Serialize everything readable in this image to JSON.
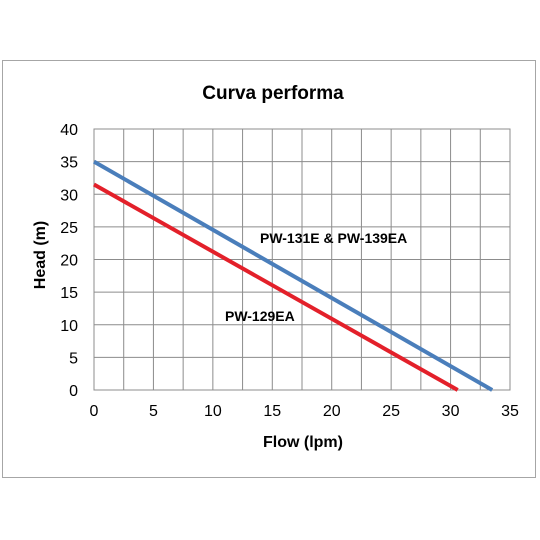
{
  "chart_data": {
    "type": "line",
    "title": "Curva performa",
    "xlabel": "Flow (lpm)",
    "ylabel": "Head (m)",
    "xlim": [
      0,
      35
    ],
    "ylim": [
      0,
      40
    ],
    "xticks": [
      0,
      5,
      10,
      15,
      20,
      25,
      30,
      35
    ],
    "yticks": [
      0,
      5,
      10,
      15,
      20,
      25,
      30,
      35,
      40
    ],
    "x_minor_step": 2.5,
    "grid": true,
    "legend": "none",
    "series": [
      {
        "name": "PW-131E & PW-139EA",
        "color": "#4a7ebb",
        "points": [
          [
            0,
            35
          ],
          [
            33.5,
            0
          ]
        ]
      },
      {
        "name": "PW-129EA",
        "color": "#e3202a",
        "points": [
          [
            0,
            31.5
          ],
          [
            30.6,
            0
          ]
        ]
      }
    ]
  }
}
